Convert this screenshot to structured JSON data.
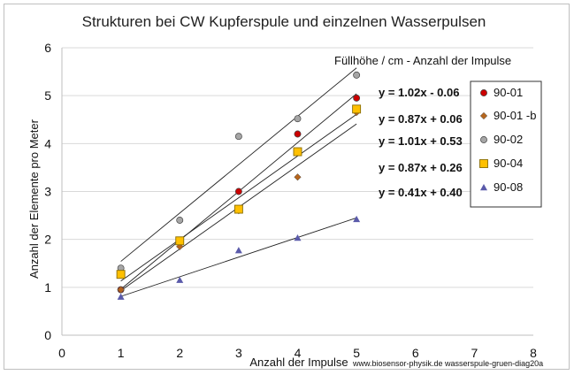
{
  "chart_data": {
    "type": "scatter",
    "title": "Strukturen bei CW Kupferspule und einzelnen Wasserpulsen",
    "xlabel": "Anzahl der Impulse",
    "ylabel": "Anzahl der Elemente pro Meter",
    "xlim": [
      0,
      8
    ],
    "ylim": [
      0,
      6
    ],
    "xticks": [
      "0",
      "1",
      "2",
      "3",
      "4",
      "5",
      "6",
      "7",
      "8"
    ],
    "yticks": [
      "0",
      "1",
      "2",
      "3",
      "4",
      "5",
      "6"
    ],
    "grid": "horizontal",
    "legend_title": "Füllhöhe / cm  - Anzahl der Impulse",
    "legend_position": "right",
    "credit": "www.biosensor-physik.de  wasserspule-gruen-diag20a",
    "series": [
      {
        "name": "90-01",
        "marker": "circle",
        "color": "#cc0000",
        "x": [
          1,
          2,
          3,
          4,
          5
        ],
        "y": [
          0.95,
          1.95,
          3.0,
          4.2,
          4.95
        ],
        "equation": "y = 1.02x - 0.06",
        "slope": 1.02,
        "intercept": -0.06
      },
      {
        "name": "90-01 -b",
        "marker": "diamond",
        "color": "#b5651d",
        "x": [
          1,
          2,
          3,
          4,
          5
        ],
        "y": [
          0.95,
          1.85,
          2.6,
          3.3,
          4.65
        ],
        "equation": "y = 0.87x + 0.06",
        "slope": 0.87,
        "intercept": 0.06
      },
      {
        "name": "90-02",
        "marker": "circle",
        "color": "#a6a6a6",
        "x": [
          1,
          2,
          3,
          4,
          5
        ],
        "y": [
          1.4,
          2.4,
          4.15,
          4.52,
          5.43
        ],
        "equation": "y = 1.01x + 0.53",
        "slope": 1.01,
        "intercept": 0.53
      },
      {
        "name": "90-04",
        "marker": "square",
        "color": "#ffc000",
        "x": [
          1,
          2,
          3,
          4,
          5
        ],
        "y": [
          1.27,
          1.97,
          2.63,
          3.83,
          4.72
        ],
        "equation": "y = 0.87x + 0.26",
        "slope": 0.87,
        "intercept": 0.26
      },
      {
        "name": "90-08",
        "marker": "triangle",
        "color": "#5a5aaa",
        "x": [
          1,
          2,
          3,
          4,
          5
        ],
        "y": [
          0.8,
          1.15,
          1.77,
          2.03,
          2.42
        ],
        "equation": "y = 0.41x + 0.40",
        "slope": 0.41,
        "intercept": 0.4
      }
    ]
  }
}
